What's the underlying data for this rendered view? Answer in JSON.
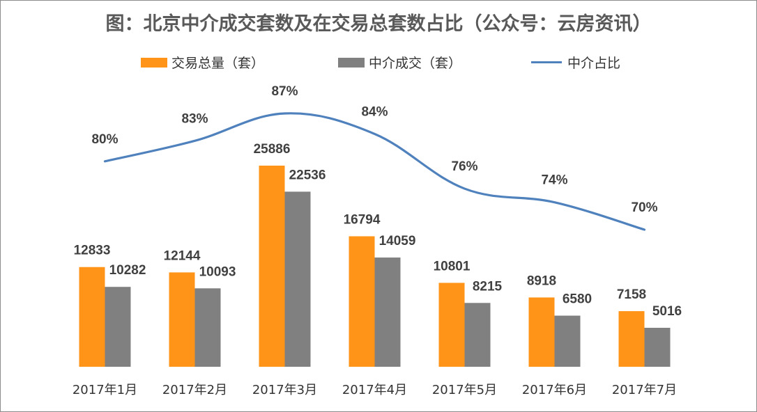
{
  "chart_data": {
    "type": "bar",
    "title": "图：北京中介成交套数及在交易总套数占比（公众号：云房资讯）",
    "categories": [
      "2017年1月",
      "2017年2月",
      "2017年3月",
      "2017年4月",
      "2017年5月",
      "2017年6月",
      "2017年7月"
    ],
    "series": [
      {
        "name": "交易总量（套）",
        "kind": "bar",
        "color": "#FF9419",
        "values": [
          12833,
          12144,
          25886,
          16794,
          10801,
          8918,
          7158
        ]
      },
      {
        "name": "中介成交（套）",
        "kind": "bar",
        "color": "#808080",
        "values": [
          10282,
          10093,
          22536,
          14059,
          8215,
          6580,
          5016
        ]
      },
      {
        "name": "中介占比",
        "kind": "line",
        "color": "#4F81BD",
        "values": [
          80,
          83,
          87,
          84,
          76,
          74,
          70
        ],
        "labels": [
          "80%",
          "83%",
          "87%",
          "84%",
          "76%",
          "74%",
          "70%"
        ]
      }
    ],
    "legend_position": "top",
    "grid": false
  }
}
